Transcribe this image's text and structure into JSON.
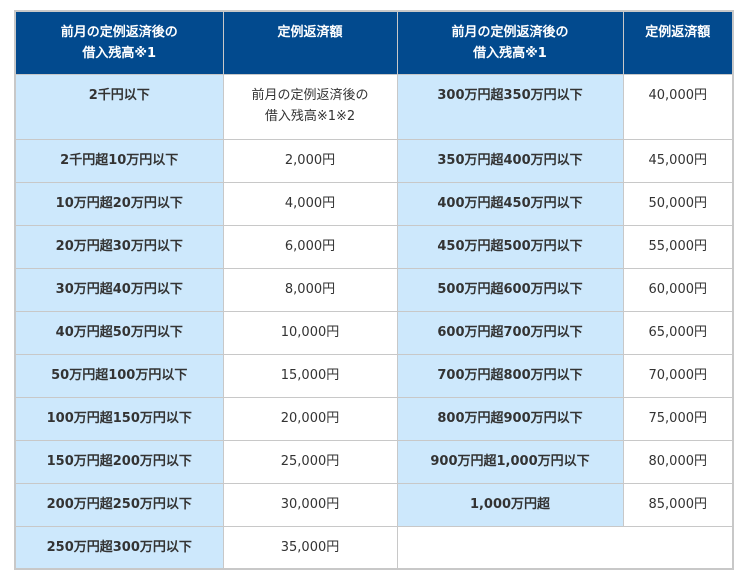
{
  "headers": [
    "前月の定例返済後の\n借入残高※1",
    "定例返済額",
    "前月の定例返済後の\n借入残高※1",
    "定例返済額"
  ],
  "left": [
    {
      "balance": "2千円以下",
      "amount": "前月の定例返済後の\n借入残高※1※2"
    },
    {
      "balance": "2千円超10万円以下",
      "amount": "2,000円"
    },
    {
      "balance": "10万円超20万円以下",
      "amount": "4,000円"
    },
    {
      "balance": "20万円超30万円以下",
      "amount": "6,000円"
    },
    {
      "balance": "30万円超40万円以下",
      "amount": "8,000円"
    },
    {
      "balance": "40万円超50万円以下",
      "amount": "10,000円"
    },
    {
      "balance": "50万円超100万円以下",
      "amount": "15,000円"
    },
    {
      "balance": "100万円超150万円以下",
      "amount": "20,000円"
    },
    {
      "balance": "150万円超200万円以下",
      "amount": "25,000円"
    },
    {
      "balance": "200万円超250万円以下",
      "amount": "30,000円"
    },
    {
      "balance": "250万円超300万円以下",
      "amount": "35,000円"
    }
  ],
  "right": [
    {
      "balance": "300万円超350万円以下",
      "amount": "40,000円"
    },
    {
      "balance": "350万円超400万円以下",
      "amount": "45,000円"
    },
    {
      "balance": "400万円超450万円以下",
      "amount": "50,000円"
    },
    {
      "balance": "450万円超500万円以下",
      "amount": "55,000円"
    },
    {
      "balance": "500万円超600万円以下",
      "amount": "60,000円"
    },
    {
      "balance": "600万円超700万円以下",
      "amount": "65,000円"
    },
    {
      "balance": "700万円超800万円以下",
      "amount": "70,000円"
    },
    {
      "balance": "800万円超900万円以下",
      "amount": "75,000円"
    },
    {
      "balance": "900万円超1,000万円以下",
      "amount": "80,000円"
    },
    {
      "balance": "1,000万円超",
      "amount": "85,000円"
    }
  ],
  "colors": {
    "header": "#024a8e",
    "key_cell": "#cde8fc"
  }
}
